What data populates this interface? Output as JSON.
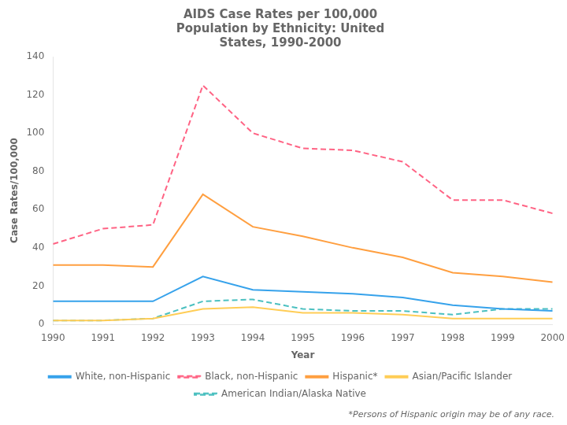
{
  "chart_data": {
    "type": "line",
    "title": "AIDS Case Rates per 100,000\nPopulation by Ethnicity: United\nStates, 1990-2000",
    "xlabel": "Year",
    "ylabel": "Case Rates/100,000",
    "x": [
      1990,
      1991,
      1992,
      1993,
      1994,
      1995,
      1996,
      1997,
      1998,
      1999,
      2000
    ],
    "series": [
      {
        "name": "White, non-Hispanic",
        "values": [
          12,
          12,
          12,
          25,
          18,
          17,
          16,
          14,
          10,
          8,
          7
        ],
        "line_style": "solid"
      },
      {
        "name": "Black, non-Hispanic",
        "values": [
          42,
          50,
          52,
          125,
          100,
          92,
          91,
          85,
          65,
          65,
          58
        ],
        "line_style": "dashed"
      },
      {
        "name": "Hispanic*",
        "values": [
          31,
          31,
          30,
          68,
          51,
          46,
          40,
          35,
          27,
          25,
          22
        ],
        "line_style": "solid"
      },
      {
        "name": "Asian/Pacific Islander",
        "values": [
          2,
          2,
          3,
          8,
          9,
          6,
          6,
          5,
          3,
          3,
          3
        ],
        "line_style": "solid"
      },
      {
        "name": "American Indian/Alaska Native",
        "values": [
          2,
          2,
          3,
          12,
          13,
          8,
          7,
          7,
          5,
          8,
          8
        ],
        "line_style": "dashed"
      }
    ],
    "xlim": [
      1990,
      2000
    ],
    "xticks": [
      1990,
      1991,
      1992,
      1993,
      1994,
      1995,
      1996,
      1997,
      1998,
      1999,
      2000
    ],
    "ylim": [
      0,
      140
    ],
    "yticks": [
      0,
      20,
      40,
      60,
      80,
      100,
      120,
      140
    ],
    "grid": false,
    "legend": "bottom",
    "annotations": [
      "*Persons of Hispanic origin may be of any race."
    ]
  }
}
